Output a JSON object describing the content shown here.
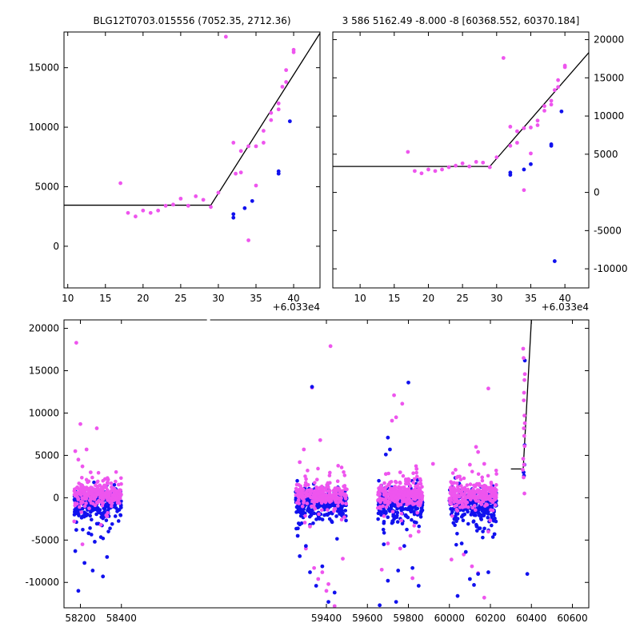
{
  "figure": {
    "title_left": "BLG12T0703.015556 (7052.35, 2712.36)",
    "title_right": "3 586 5162.49 -8.000 -8 [60368.552, 60370.184]",
    "offset_text": "+6.033e4"
  },
  "colors": {
    "magenta": "#ee55ee",
    "blue": "#1111ee",
    "line": "#000000"
  },
  "chart_data": [
    {
      "type": "scatter",
      "title": "BLG12T0703.015556 (7052.35, 2712.36)",
      "x_offset_label": "+6.033e4",
      "xlim": [
        9.5,
        43.5
      ],
      "ylim": [
        -3500,
        18000
      ],
      "x_ticks": [
        10,
        15,
        20,
        25,
        30,
        35,
        40
      ],
      "y_ticks": [
        0,
        5000,
        10000,
        15000
      ],
      "y_axis_side": "left",
      "series": [
        {
          "color": "#ee55ee",
          "points": [
            [
              17,
              5300
            ],
            [
              18,
              2800
            ],
            [
              19,
              2500
            ],
            [
              20,
              3000
            ],
            [
              21,
              2800
            ],
            [
              22,
              3000
            ],
            [
              23,
              3400
            ],
            [
              24,
              3500
            ],
            [
              25,
              4000
            ],
            [
              26,
              3400
            ],
            [
              27,
              4200
            ],
            [
              28,
              3900
            ],
            [
              29,
              3300
            ],
            [
              30,
              4500
            ],
            [
              31,
              17600
            ],
            [
              32,
              8700
            ],
            [
              32.3,
              6100
            ],
            [
              33,
              6200
            ],
            [
              33,
              8000
            ],
            [
              34,
              8400
            ],
            [
              34,
              500
            ],
            [
              35,
              8400
            ],
            [
              35,
              5100
            ],
            [
              36,
              9700
            ],
            [
              36,
              8700
            ],
            [
              37,
              10600
            ],
            [
              37,
              11200
            ],
            [
              38,
              11500
            ],
            [
              38,
              12000
            ],
            [
              38.5,
              13400
            ],
            [
              39,
              13800
            ],
            [
              39,
              14800
            ],
            [
              40,
              16500
            ],
            [
              40,
              16300
            ]
          ]
        },
        {
          "color": "#1111ee",
          "points": [
            [
              32,
              2700
            ],
            [
              32,
              2400
            ],
            [
              33.5,
              3200
            ],
            [
              34.5,
              3800
            ],
            [
              38,
              6100
            ],
            [
              38,
              6300
            ],
            [
              39.5,
              10500
            ]
          ]
        }
      ],
      "model_line": {
        "x": [
          9.5,
          29,
          43.5
        ],
        "y": [
          3450,
          3450,
          17900
        ]
      }
    },
    {
      "type": "scatter",
      "title": "3 586 5162.49 -8.000 -8 [60368.552, 60370.184]",
      "x_offset_label": "+6.033e4",
      "xlim": [
        6,
        43.5
      ],
      "ylim": [
        -12500,
        21000
      ],
      "x_ticks": [
        10,
        15,
        20,
        25,
        30,
        35,
        40
      ],
      "y_ticks": [
        -10000,
        -5000,
        0,
        5000,
        10000,
        15000,
        20000
      ],
      "y_axis_side": "right",
      "series": [
        {
          "color": "#ee55ee",
          "points": [
            [
              17,
              5300
            ],
            [
              18,
              2800
            ],
            [
              19,
              2500
            ],
            [
              20,
              3000
            ],
            [
              21,
              2800
            ],
            [
              22,
              3000
            ],
            [
              23,
              3300
            ],
            [
              24,
              3500
            ],
            [
              25,
              3800
            ],
            [
              26,
              3400
            ],
            [
              27,
              4000
            ],
            [
              28,
              3900
            ],
            [
              29,
              3300
            ],
            [
              30,
              4600
            ],
            [
              31,
              17600
            ],
            [
              32,
              8600
            ],
            [
              32,
              6100
            ],
            [
              33,
              6500
            ],
            [
              33,
              8000
            ],
            [
              34,
              8400
            ],
            [
              34,
              300
            ],
            [
              35,
              8500
            ],
            [
              35,
              5100
            ],
            [
              36,
              9400
            ],
            [
              36,
              8800
            ],
            [
              37,
              10700
            ],
            [
              37,
              11300
            ],
            [
              38,
              11500
            ],
            [
              38,
              12000
            ],
            [
              38.5,
              13400
            ],
            [
              39,
              13800
            ],
            [
              39,
              14700
            ],
            [
              40,
              16600
            ],
            [
              40,
              16400
            ]
          ]
        },
        {
          "color": "#1111ee",
          "points": [
            [
              32,
              2600
            ],
            [
              32,
              2300
            ],
            [
              34,
              3000
            ],
            [
              35,
              3700
            ],
            [
              38,
              6100
            ],
            [
              38,
              6300
            ],
            [
              39.5,
              10600
            ],
            [
              38.5,
              -9000
            ]
          ]
        }
      ],
      "model_line": {
        "x": [
          6,
          29,
          43.5
        ],
        "y": [
          3400,
          3400,
          18300
        ]
      }
    },
    {
      "type": "scatter",
      "title": "",
      "xlim": [
        58120,
        60680
      ],
      "ylim": [
        -13000,
        21000
      ],
      "x_ticks": [
        58200,
        58400,
        59400,
        59600,
        59800,
        60000,
        60200,
        60400,
        60600
      ],
      "y_ticks": [
        -10000,
        -5000,
        0,
        5000,
        10000,
        15000,
        20000
      ],
      "y_axis_side": "left",
      "axis_break": {
        "left_end": 58420,
        "right_start": 59230
      },
      "seasons": [
        {
          "x_range": [
            58170,
            58400
          ],
          "magenta_spread": 600,
          "blue_mean": -500
        },
        {
          "x_range": [
            59250,
            59500
          ],
          "magenta_spread": 600,
          "blue_mean": -600
        },
        {
          "x_range": [
            59650,
            59870
          ],
          "magenta_spread": 700,
          "blue_mean": -400
        },
        {
          "x_range": [
            60000,
            60230
          ],
          "magenta_spread": 700,
          "blue_mean": -900
        }
      ],
      "series": [
        {
          "color": "#ee55ee",
          "points": [
            [
              58180,
              18300
            ],
            [
              58200,
              8700
            ],
            [
              58175,
              5500
            ],
            [
              58230,
              5700
            ],
            [
              58280,
              8200
            ],
            [
              58190,
              4500
            ],
            [
              58210,
              3700
            ],
            [
              58250,
              3000
            ],
            [
              58320,
              2200
            ],
            [
              58350,
              1700
            ],
            [
              58210,
              -5500
            ],
            [
              58300,
              -3200
            ],
            [
              58330,
              -2200
            ],
            [
              58170,
              -2800
            ],
            [
              59420,
              17900
            ],
            [
              59330,
              13000
            ],
            [
              59370,
              6800
            ],
            [
              59270,
              4200
            ],
            [
              59290,
              5700
            ],
            [
              59340,
              -8300
            ],
            [
              59360,
              -9600
            ],
            [
              59380,
              -8800
            ],
            [
              59400,
              -11000
            ],
            [
              59410,
              -10200
            ],
            [
              59300,
              -6000
            ],
            [
              59320,
              -3400
            ],
            [
              59440,
              -12800
            ],
            [
              59480,
              -7200
            ],
            [
              59730,
              12100
            ],
            [
              59770,
              11100
            ],
            [
              59740,
              9500
            ],
            [
              59720,
              9100
            ],
            [
              59760,
              3000
            ],
            [
              59690,
              2800
            ],
            [
              59800,
              2200
            ],
            [
              59840,
              3400
            ],
            [
              59700,
              -5400
            ],
            [
              59760,
              -6000
            ],
            [
              59810,
              -4500
            ],
            [
              59850,
              -4000
            ],
            [
              59670,
              -8500
            ],
            [
              59820,
              -9500
            ],
            [
              59920,
              4000
            ],
            [
              60190,
              12900
            ],
            [
              60140,
              5400
            ],
            [
              60130,
              6000
            ],
            [
              60170,
              4000
            ],
            [
              60100,
              3900
            ],
            [
              60030,
              3300
            ],
            [
              60050,
              2500
            ],
            [
              60010,
              -7300
            ],
            [
              60070,
              -6700
            ],
            [
              60110,
              -8100
            ],
            [
              60140,
              -8900
            ],
            [
              60170,
              -11800
            ],
            [
              60190,
              -4000
            ]
          ]
        },
        {
          "color": "#1111ee",
          "points": [
            [
              58190,
              -11000
            ],
            [
              58260,
              -8600
            ],
            [
              58220,
              -7700
            ],
            [
              58310,
              -9300
            ],
            [
              58330,
              -7000
            ],
            [
              58175,
              -6300
            ],
            [
              58240,
              -4200
            ],
            [
              58180,
              -3800
            ],
            [
              58270,
              -5200
            ],
            [
              59330,
              13100
            ],
            [
              59270,
              -6900
            ],
            [
              59320,
              -8800
            ],
            [
              59350,
              -10400
            ],
            [
              59380,
              -8100
            ],
            [
              59410,
              -12300
            ],
            [
              59440,
              -11200
            ],
            [
              59300,
              -5700
            ],
            [
              59260,
              -4500
            ],
            [
              59700,
              7100
            ],
            [
              59710,
              5700
            ],
            [
              59690,
              5100
            ],
            [
              59800,
              13600
            ],
            [
              59660,
              -12700
            ],
            [
              59700,
              -9800
            ],
            [
              59740,
              -12300
            ],
            [
              59750,
              -8600
            ],
            [
              59820,
              -8300
            ],
            [
              59850,
              -10400
            ],
            [
              59680,
              -5500
            ],
            [
              59780,
              -5700
            ],
            [
              60040,
              -11600
            ],
            [
              60100,
              -9600
            ],
            [
              60120,
              -10300
            ],
            [
              60140,
              -9000
            ],
            [
              60190,
              -8800
            ],
            [
              60080,
              -6400
            ],
            [
              60060,
              -5400
            ],
            [
              60220,
              -4300
            ],
            [
              60380,
              -9000
            ]
          ]
        }
      ],
      "model_line": {
        "x": [
          60300,
          60350,
          60360,
          60400
        ],
        "y": [
          3400,
          3400,
          3400,
          21000
        ]
      },
      "current_season": {
        "x_range": [
          60355,
          60372
        ],
        "magenta_points": [
          [
            60360,
            17600
          ],
          [
            60362,
            16500
          ],
          [
            60368,
            14600
          ],
          [
            60366,
            13900
          ],
          [
            60364,
            12400
          ],
          [
            60363,
            11500
          ],
          [
            60366,
            9700
          ],
          [
            60368,
            8800
          ],
          [
            60363,
            8200
          ],
          [
            60365,
            7300
          ],
          [
            60367,
            6100
          ],
          [
            60360,
            4600
          ],
          [
            60358,
            3300
          ],
          [
            60362,
            2400
          ],
          [
            60364,
            3900
          ],
          [
            60366,
            500
          ]
        ],
        "blue_points": [
          [
            60367,
            6200
          ],
          [
            60366,
            3900
          ],
          [
            60362,
            3000
          ],
          [
            60364,
            2600
          ],
          [
            60368,
            16200
          ]
        ]
      }
    }
  ]
}
